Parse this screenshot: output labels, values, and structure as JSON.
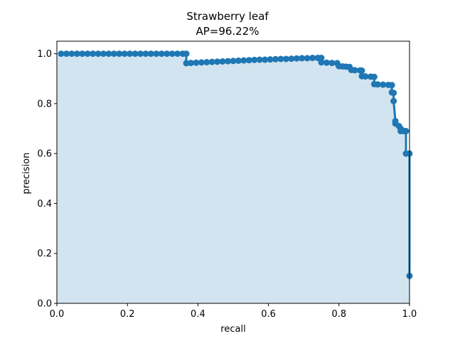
{
  "chart_data": {
    "type": "line",
    "title_line1": "Strawberry leaf",
    "title_line2": "AP=96.22%",
    "xlabel": "recall",
    "ylabel": "precision",
    "xlim": [
      0.0,
      1.0
    ],
    "ylim": [
      0.0,
      1.05
    ],
    "grid": false,
    "legend": "none",
    "fill_under_curve": true,
    "colors": {
      "line": "#1f77b4",
      "fill": "#1f77b4",
      "fill_opacity": 0.2
    },
    "xticks": [
      {
        "v": 0.0,
        "label": "0.0"
      },
      {
        "v": 0.2,
        "label": "0.2"
      },
      {
        "v": 0.4,
        "label": "0.4"
      },
      {
        "v": 0.6,
        "label": "0.6"
      },
      {
        "v": 0.8,
        "label": "0.8"
      },
      {
        "v": 1.0,
        "label": "1.0"
      }
    ],
    "yticks": [
      {
        "v": 0.0,
        "label": "0.0"
      },
      {
        "v": 0.2,
        "label": "0.2"
      },
      {
        "v": 0.4,
        "label": "0.4"
      },
      {
        "v": 0.6,
        "label": "0.6"
      },
      {
        "v": 0.8,
        "label": "0.8"
      },
      {
        "v": 1.0,
        "label": "1.0"
      }
    ],
    "series": [
      {
        "x": [
          0.012,
          0.027,
          0.042,
          0.057,
          0.072,
          0.087,
          0.102,
          0.117,
          0.132,
          0.147,
          0.162,
          0.177,
          0.192,
          0.207,
          0.222,
          0.237,
          0.252,
          0.267,
          0.282,
          0.297,
          0.312,
          0.327,
          0.342,
          0.357,
          0.367,
          0.367,
          0.38,
          0.395,
          0.41,
          0.425,
          0.44,
          0.455,
          0.47,
          0.485,
          0.5,
          0.515,
          0.53,
          0.545,
          0.56,
          0.575,
          0.59,
          0.605,
          0.62,
          0.635,
          0.65,
          0.665,
          0.68,
          0.695,
          0.71,
          0.725,
          0.74,
          0.75,
          0.75,
          0.765,
          0.78,
          0.795,
          0.8,
          0.81,
          0.82,
          0.83,
          0.835,
          0.845,
          0.86,
          0.865,
          0.865,
          0.875,
          0.89,
          0.9,
          0.9,
          0.91,
          0.925,
          0.94,
          0.95,
          0.95,
          0.955,
          0.955,
          0.96,
          0.96,
          0.97,
          0.975,
          0.975,
          0.985,
          0.99,
          0.99,
          1.0,
          1.0
        ],
        "y": [
          1.0,
          1.0,
          1.0,
          1.0,
          1.0,
          1.0,
          1.0,
          1.0,
          1.0,
          1.0,
          1.0,
          1.0,
          1.0,
          1.0,
          1.0,
          1.0,
          1.0,
          1.0,
          1.0,
          1.0,
          1.0,
          1.0,
          1.0,
          1.0,
          1.0,
          0.962,
          0.963,
          0.964,
          0.965,
          0.966,
          0.967,
          0.968,
          0.969,
          0.97,
          0.971,
          0.972,
          0.973,
          0.974,
          0.975,
          0.976,
          0.976,
          0.977,
          0.978,
          0.979,
          0.979,
          0.98,
          0.981,
          0.982,
          0.982,
          0.983,
          0.983,
          0.983,
          0.965,
          0.964,
          0.963,
          0.962,
          0.95,
          0.949,
          0.948,
          0.947,
          0.935,
          0.934,
          0.933,
          0.932,
          0.91,
          0.909,
          0.908,
          0.907,
          0.878,
          0.877,
          0.876,
          0.875,
          0.874,
          0.845,
          0.843,
          0.81,
          0.73,
          0.72,
          0.71,
          0.7,
          0.69,
          0.69,
          0.69,
          0.6,
          0.6,
          0.11
        ]
      }
    ]
  }
}
